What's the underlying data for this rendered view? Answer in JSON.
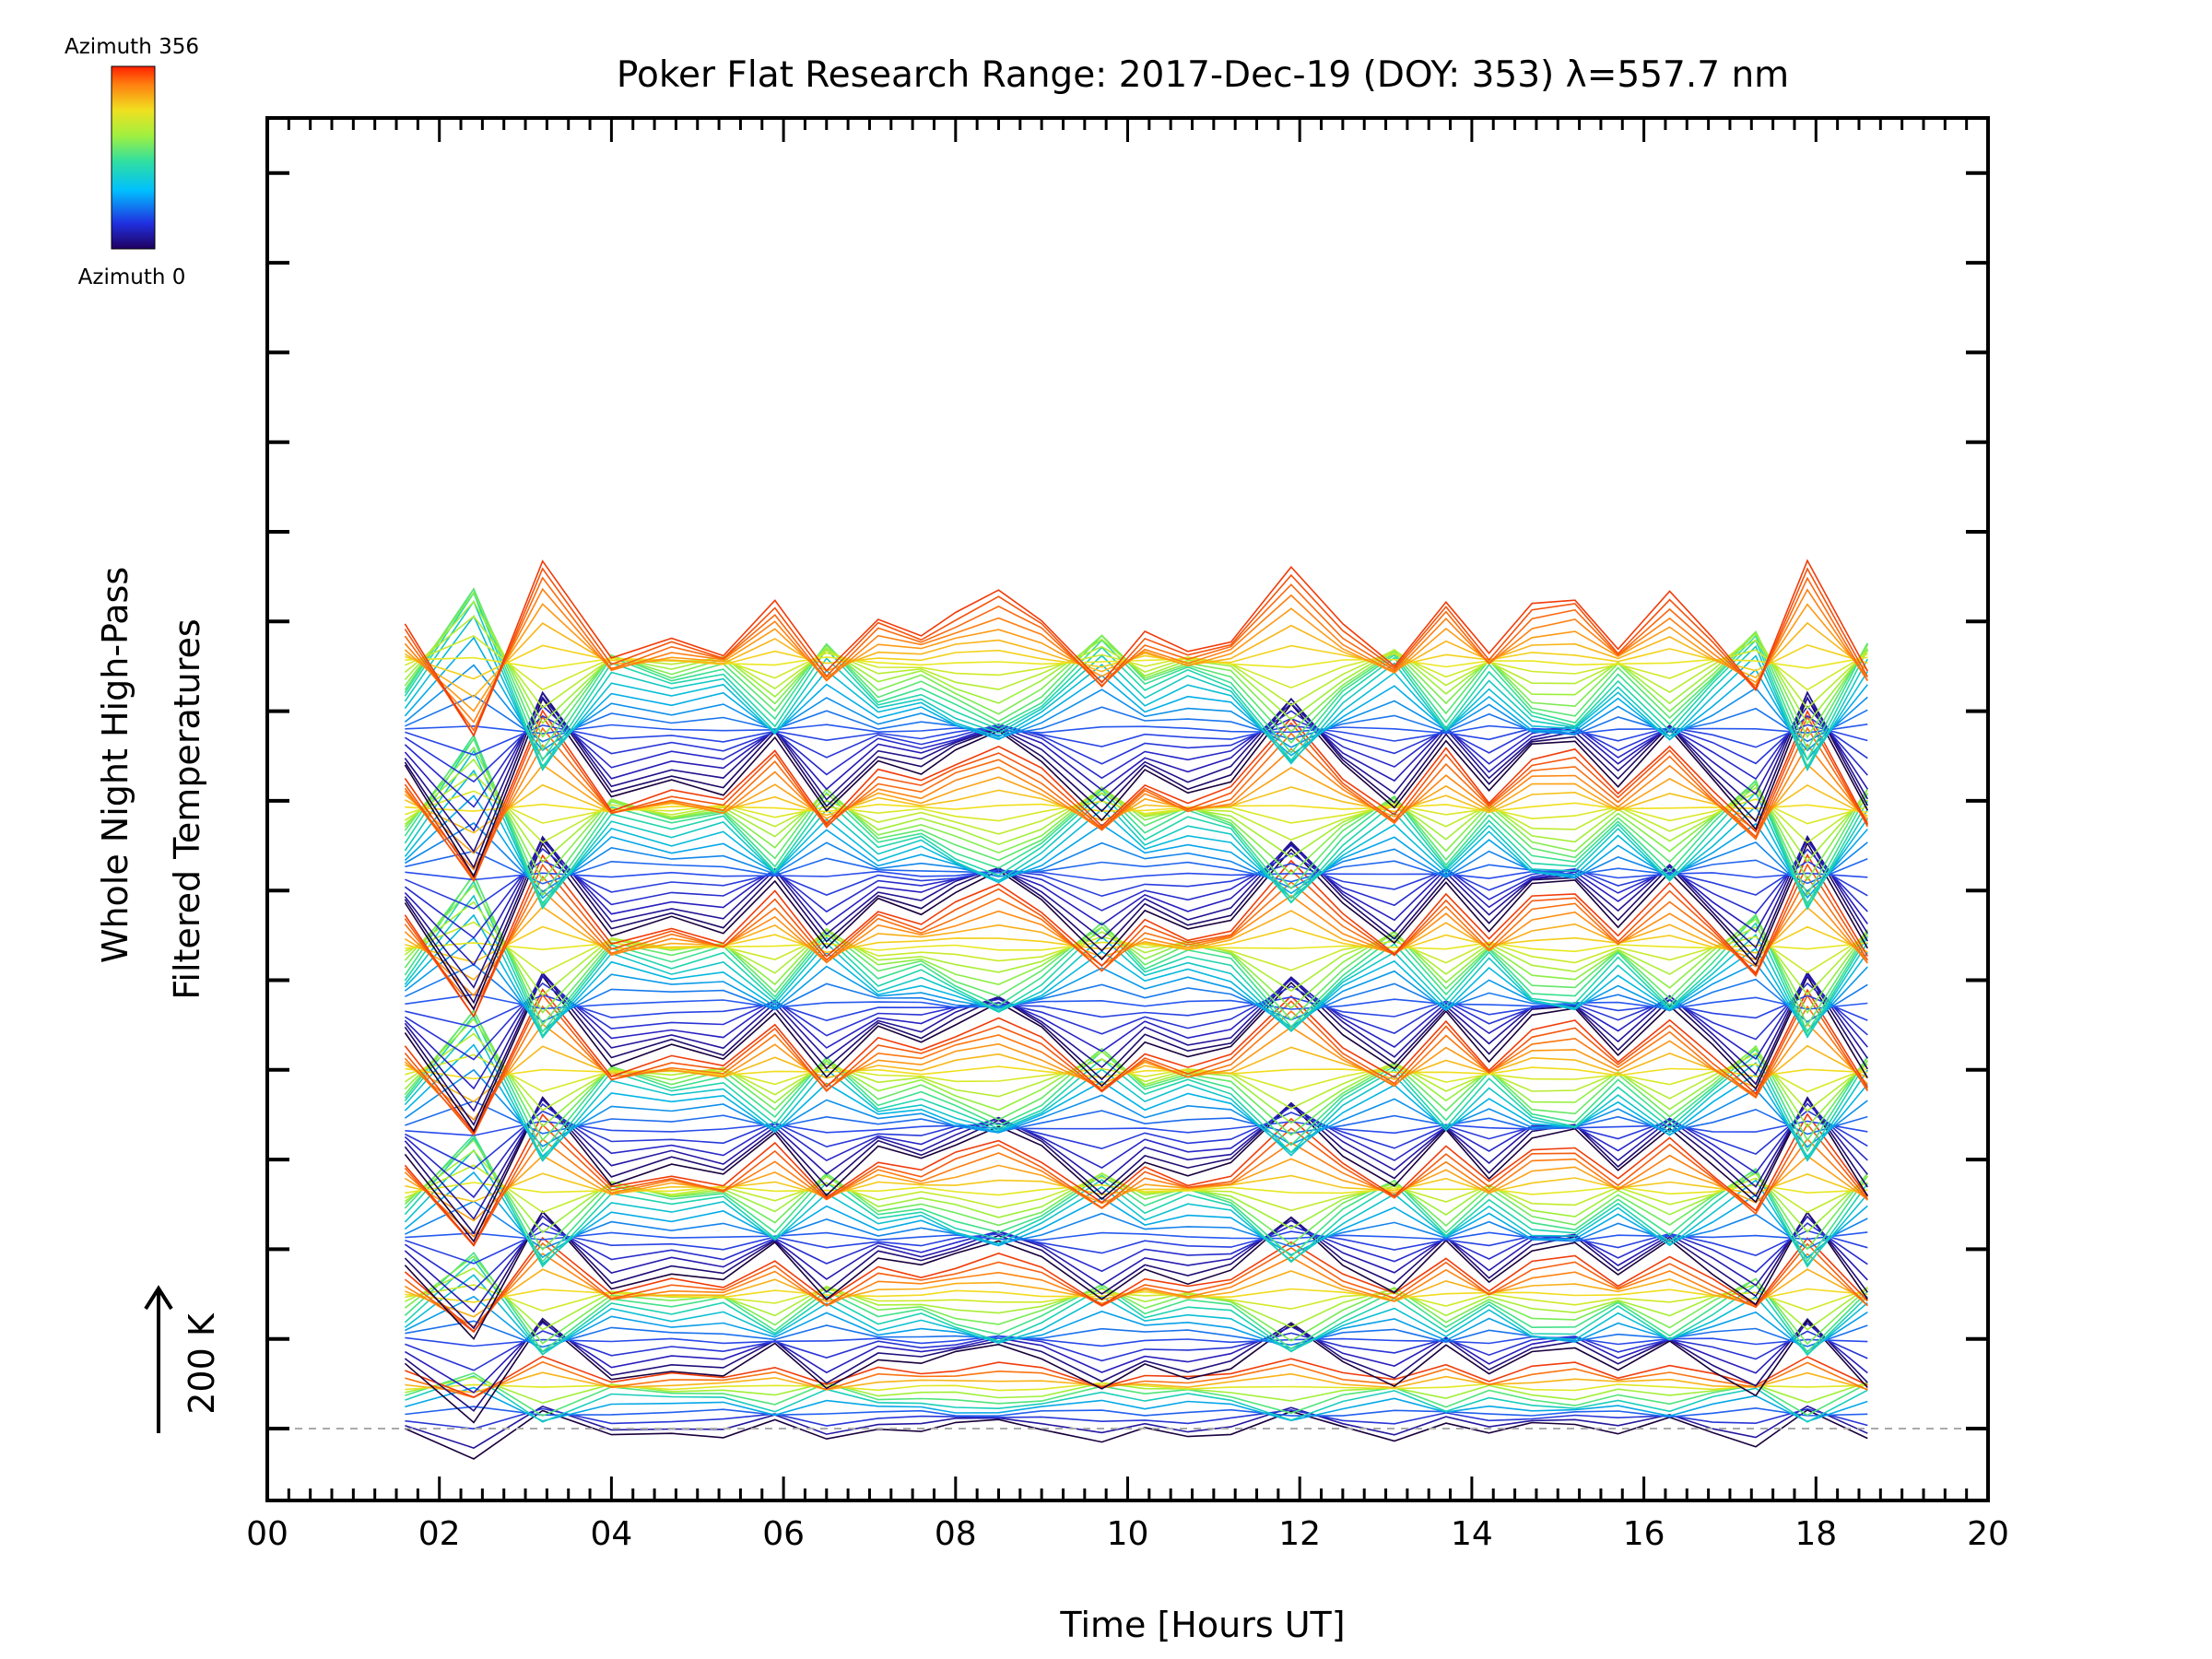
{
  "chart_data": {
    "type": "line",
    "title": "Poker Flat Research Range: 2017-Dec-19 (DOY: 353) λ=557.7 nm",
    "xlabel": "Time [Hours UT]",
    "ylabel_line1": "Whole Night High-Pass",
    "ylabel_line2": "Filtered Temperatures",
    "scale_label": "200 K",
    "xlim": [
      0,
      20
    ],
    "x_ticks": [
      "00",
      "02",
      "04",
      "06",
      "08",
      "10",
      "12",
      "14",
      "16",
      "18",
      "20"
    ],
    "grid": false,
    "colorbar": {
      "top_label": "Azimuth 356",
      "bottom_label": "Azimuth 0",
      "colormap": "rainbow"
    },
    "x": [
      1.6,
      2.4,
      3.2,
      4.0,
      4.7,
      5.3,
      5.9,
      6.5,
      7.1,
      7.6,
      8.0,
      8.5,
      9.0,
      9.7,
      10.2,
      10.7,
      11.2,
      11.9,
      12.5,
      13.1,
      13.7,
      14.2,
      14.7,
      15.2,
      15.7,
      16.3,
      16.8,
      17.3,
      17.9,
      18.6
    ],
    "band_shape": [
      0,
      -1.6,
      1.0,
      -0.5,
      -0.2,
      -0.4,
      0.4,
      -0.7,
      0.1,
      -0.1,
      0.2,
      0.5,
      0.1,
      -0.8,
      -0.1,
      -0.4,
      -0.2,
      0.9,
      0.0,
      -0.6,
      0.4,
      -0.4,
      0.3,
      0.4,
      -0.3,
      0.5,
      -0.2,
      -0.9,
      1.0,
      -0.7
    ],
    "series_groups": [
      {
        "trace_count": 12,
        "amplitude_k": 22
      },
      {
        "trace_count": 18,
        "amplitude_k": 48
      },
      {
        "trace_count": 20,
        "amplitude_k": 62
      },
      {
        "trace_count": 22,
        "amplitude_k": 72
      },
      {
        "trace_count": 24,
        "amplitude_k": 78
      },
      {
        "trace_count": 26,
        "amplitude_k": 82
      },
      {
        "trace_count": 28,
        "amplitude_k": 86
      }
    ]
  }
}
